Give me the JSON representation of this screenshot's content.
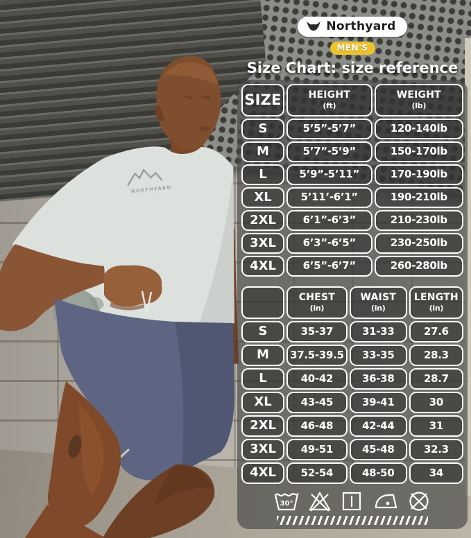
{
  "brand": {
    "name": "Northyard",
    "badge": "MEN'S"
  },
  "title": "Size Chart: size reference",
  "size_table": {
    "columns": [
      {
        "label": "SIZE",
        "unit": ""
      },
      {
        "label": "HEIGHT",
        "unit": "(ft)"
      },
      {
        "label": "WEIGHT",
        "unit": "(lb)"
      }
    ],
    "rows": [
      [
        "S",
        "5’5”-5’7”",
        "120-140lb"
      ],
      [
        "M",
        "5’7”-5’9”",
        "150-170lb"
      ],
      [
        "L",
        "5’9”-5’11”",
        "170-190lb"
      ],
      [
        "XL",
        "5’11’-6’1”",
        "190-210lb"
      ],
      [
        "2XL",
        "6’1”-6’3”",
        "210-230lb"
      ],
      [
        "3XL",
        "6’3”-6’5”",
        "230-250lb"
      ],
      [
        "4XL",
        "6’5”-6’7”",
        "260-280lb"
      ]
    ]
  },
  "measure_table": {
    "columns": [
      {
        "label": "",
        "unit": ""
      },
      {
        "label": "CHEST",
        "unit": "(in)"
      },
      {
        "label": "WAIST",
        "unit": "(in)"
      },
      {
        "label": "LENGTH",
        "unit": "(in)"
      }
    ],
    "rows": [
      [
        "S",
        "35-37",
        "31-33",
        "27.6"
      ],
      [
        "M",
        "37.5-39.5",
        "33-35",
        "28.3"
      ],
      [
        "L",
        "40-42",
        "36-38",
        "28.7"
      ],
      [
        "XL",
        "43-45",
        "39-41",
        "30"
      ],
      [
        "2XL",
        "46-48",
        "42-44",
        "31"
      ],
      [
        "3XL",
        "49-51",
        "45-48",
        "32.3"
      ],
      [
        "4XL",
        "52-54",
        "48-50",
        "34"
      ]
    ]
  },
  "care": {
    "wash_temp": "30°",
    "icons": [
      "machine-wash-30",
      "do-not-bleach",
      "drip-dry",
      "iron",
      "do-not-dry-clean"
    ]
  },
  "shirt_logo_text": "NORTHYARD",
  "colors": {
    "badge": "#ecc22e",
    "panel": "rgba(72,72,70,0.66)",
    "cell_fill": "rgba(38,38,36,0.52)",
    "table_text": "#ffffff",
    "shirt": "#dde1dd",
    "shorts": "#5d6583"
  }
}
